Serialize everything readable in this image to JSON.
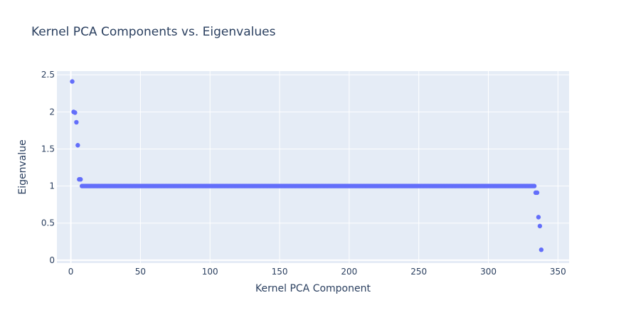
{
  "chart_data": {
    "type": "scatter",
    "title": "Kernel PCA Components vs. Eigenvalues",
    "xlabel": "Kernel PCA Component",
    "ylabel": "Eigenvalue",
    "xlim": [
      -10,
      358
    ],
    "ylim": [
      -0.04,
      2.55
    ],
    "xticks": [
      0,
      50,
      100,
      150,
      200,
      250,
      300,
      350
    ],
    "yticks": [
      0,
      0.5,
      1,
      1.5,
      2,
      2.5
    ],
    "xtick_labels": [
      "0",
      "50",
      "100",
      "150",
      "200",
      "250",
      "300",
      "350"
    ],
    "ytick_labels": [
      "0",
      "0.5",
      "1",
      "1.5",
      "2",
      "2.5"
    ],
    "grid": true,
    "colors": {
      "marker": "#636efa",
      "plot_bg": "#e5ecf6",
      "grid": "#ffffff",
      "text": "#2a3f5f"
    },
    "series": [
      {
        "values_head": [
          [
            1,
            2.41
          ],
          [
            2,
            2.0
          ],
          [
            3,
            1.99
          ],
          [
            4,
            1.86
          ],
          [
            5,
            1.55
          ],
          [
            6,
            1.09
          ],
          [
            7,
            1.09
          ]
        ],
        "plateau": {
          "x_start": 8,
          "x_end": 333,
          "y": 1.0
        },
        "values_tail": [
          [
            334,
            0.91
          ],
          [
            335,
            0.91
          ],
          [
            336,
            0.58
          ],
          [
            337,
            0.46
          ],
          [
            338,
            0.14
          ]
        ]
      }
    ]
  }
}
